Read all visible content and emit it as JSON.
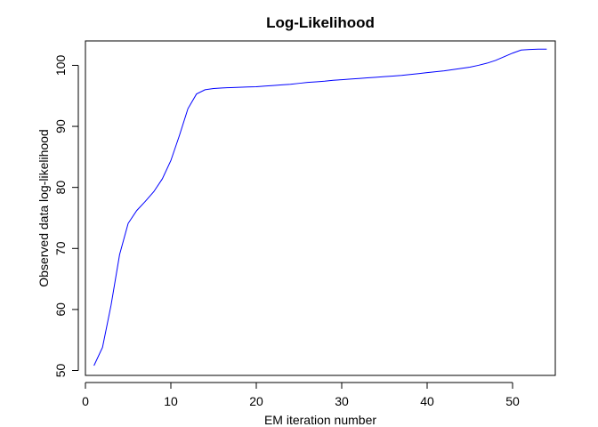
{
  "chart_data": {
    "type": "line",
    "title": "Log-Likelihood",
    "xlabel": "EM iteration number",
    "ylabel": "Observed data log-likelihood",
    "xlim": [
      0,
      55
    ],
    "ylim": [
      49.2,
      104
    ],
    "xticks": [
      0,
      10,
      20,
      30,
      40,
      50
    ],
    "yticks": [
      50,
      60,
      70,
      80,
      90,
      100
    ],
    "grid": false,
    "line_color": "#0000ff",
    "series": [
      {
        "x": [
          1,
          2,
          3,
          4,
          5,
          6,
          7,
          8,
          9,
          10,
          11,
          12,
          13,
          14,
          15,
          16,
          17,
          18,
          19,
          20,
          21,
          22,
          23,
          24,
          25,
          26,
          27,
          28,
          29,
          30,
          31,
          32,
          33,
          34,
          35,
          36,
          37,
          38,
          39,
          40,
          41,
          42,
          43,
          44,
          45,
          46,
          47,
          48,
          49,
          50,
          51,
          52,
          53,
          54
        ],
        "values": [
          50.8,
          53.8,
          60.7,
          69.0,
          74.1,
          76.2,
          77.7,
          79.3,
          81.4,
          84.4,
          88.5,
          92.9,
          95.3,
          96.0,
          96.2,
          96.3,
          96.35,
          96.4,
          96.45,
          96.5,
          96.6,
          96.7,
          96.8,
          96.9,
          97.05,
          97.2,
          97.3,
          97.4,
          97.55,
          97.65,
          97.75,
          97.85,
          97.95,
          98.05,
          98.15,
          98.25,
          98.35,
          98.5,
          98.65,
          98.8,
          98.95,
          99.1,
          99.3,
          99.5,
          99.7,
          100.0,
          100.35,
          100.8,
          101.4,
          102.0,
          102.5,
          102.6,
          102.65,
          102.65
        ]
      }
    ]
  }
}
